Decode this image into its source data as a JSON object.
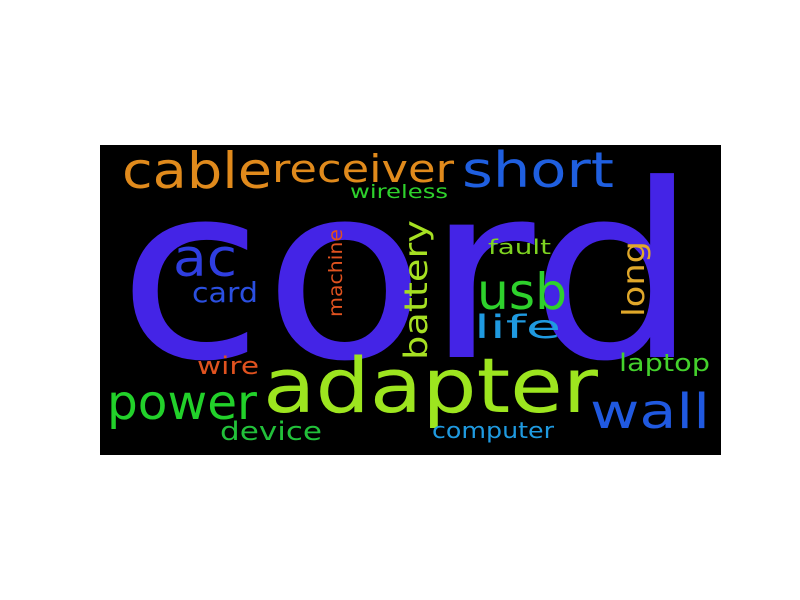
{
  "wordcloud": {
    "background": "#000000",
    "words": [
      {
        "text": "cord",
        "color": "#4424e6",
        "orientation": "horizontal"
      },
      {
        "text": "adapter",
        "color": "#9de51f",
        "orientation": "horizontal"
      },
      {
        "text": "cable",
        "color": "#e08a1c",
        "orientation": "horizontal"
      },
      {
        "text": "receiver",
        "color": "#e08a1c",
        "orientation": "horizontal"
      },
      {
        "text": "short",
        "color": "#1f5fe0",
        "orientation": "horizontal"
      },
      {
        "text": "ac",
        "color": "#2f3ee0",
        "orientation": "horizontal"
      },
      {
        "text": "usb",
        "color": "#2ed12c",
        "orientation": "horizontal"
      },
      {
        "text": "power",
        "color": "#22d12a",
        "orientation": "horizontal"
      },
      {
        "text": "wall",
        "color": "#2059e0",
        "orientation": "horizontal"
      },
      {
        "text": "battery",
        "color": "#a6e022",
        "orientation": "vertical"
      },
      {
        "text": "life",
        "color": "#1f9ae0",
        "orientation": "horizontal"
      },
      {
        "text": "long",
        "color": "#e0a82a",
        "orientation": "vertical"
      },
      {
        "text": "card",
        "color": "#2b4fe0",
        "orientation": "horizontal"
      },
      {
        "text": "machine",
        "color": "#e0521f",
        "orientation": "vertical"
      },
      {
        "text": "wireless",
        "color": "#2ed12c",
        "orientation": "horizontal"
      },
      {
        "text": "fault",
        "color": "#7ed321",
        "orientation": "horizontal"
      },
      {
        "text": "wire",
        "color": "#e0521f",
        "orientation": "horizontal"
      },
      {
        "text": "device",
        "color": "#22c13a",
        "orientation": "horizontal"
      },
      {
        "text": "laptop",
        "color": "#44d12c",
        "orientation": "horizontal"
      },
      {
        "text": "computer",
        "color": "#1f9ae0",
        "orientation": "horizontal"
      }
    ]
  }
}
